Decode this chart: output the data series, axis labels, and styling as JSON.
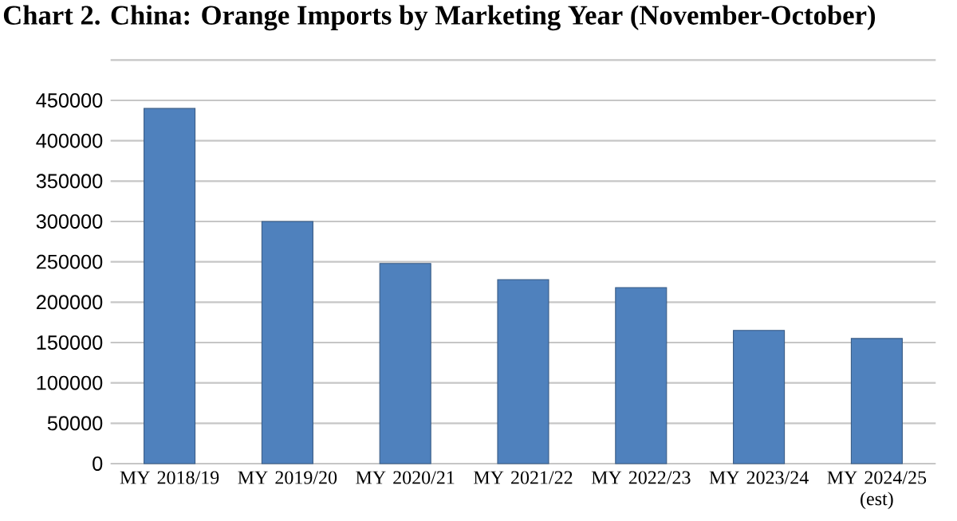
{
  "chart_data": {
    "type": "bar",
    "title": "Chart 2. China: Orange Imports by Marketing Year (November-October)",
    "categories": [
      "MY 2018/19",
      "MY 2019/20",
      "MY 2020/21",
      "MY 2021/22",
      "MY 2022/23",
      "MY 2023/24",
      "MY 2024/25 (est)"
    ],
    "values": [
      440000,
      300000,
      248000,
      228000,
      218000,
      165000,
      155000
    ],
    "color": "#4f81bd",
    "ylim": [
      0,
      500000
    ],
    "yticks": [
      0,
      50000,
      100000,
      150000,
      200000,
      250000,
      300000,
      350000,
      400000,
      450000,
      {
        "value": 500000,
        "label": null
      }
    ],
    "grid": "y"
  }
}
